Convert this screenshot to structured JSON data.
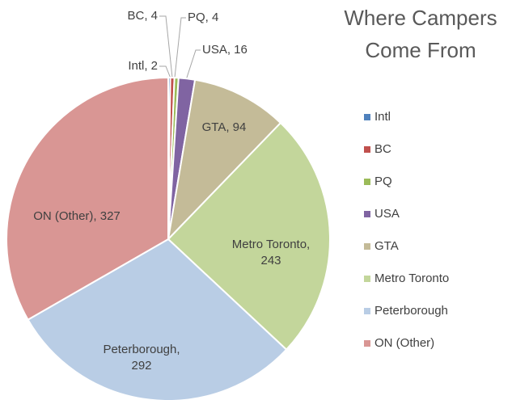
{
  "chart_data": {
    "type": "pie",
    "title": "Where Campers\nCome From",
    "categories": [
      "Intl",
      "BC",
      "PQ",
      "USA",
      "GTA",
      "Metro Toronto",
      "Peterborough",
      "ON (Other)"
    ],
    "values": [
      2,
      4,
      4,
      16,
      94,
      243,
      292,
      327
    ],
    "value_labels": [
      "Intl, 2",
      "BC, 4",
      "PQ, 4",
      "USA, 16",
      "GTA, 94",
      "Metro Toronto,\n243",
      "Peterborough,\n292",
      "ON (Other), 327"
    ],
    "colors": [
      "#4f81bd",
      "#c0504d",
      "#9bbb59",
      "#8064a2",
      "#c4bb98",
      "#c3d69b",
      "#b9cde5",
      "#d99694"
    ],
    "legend": "right"
  }
}
